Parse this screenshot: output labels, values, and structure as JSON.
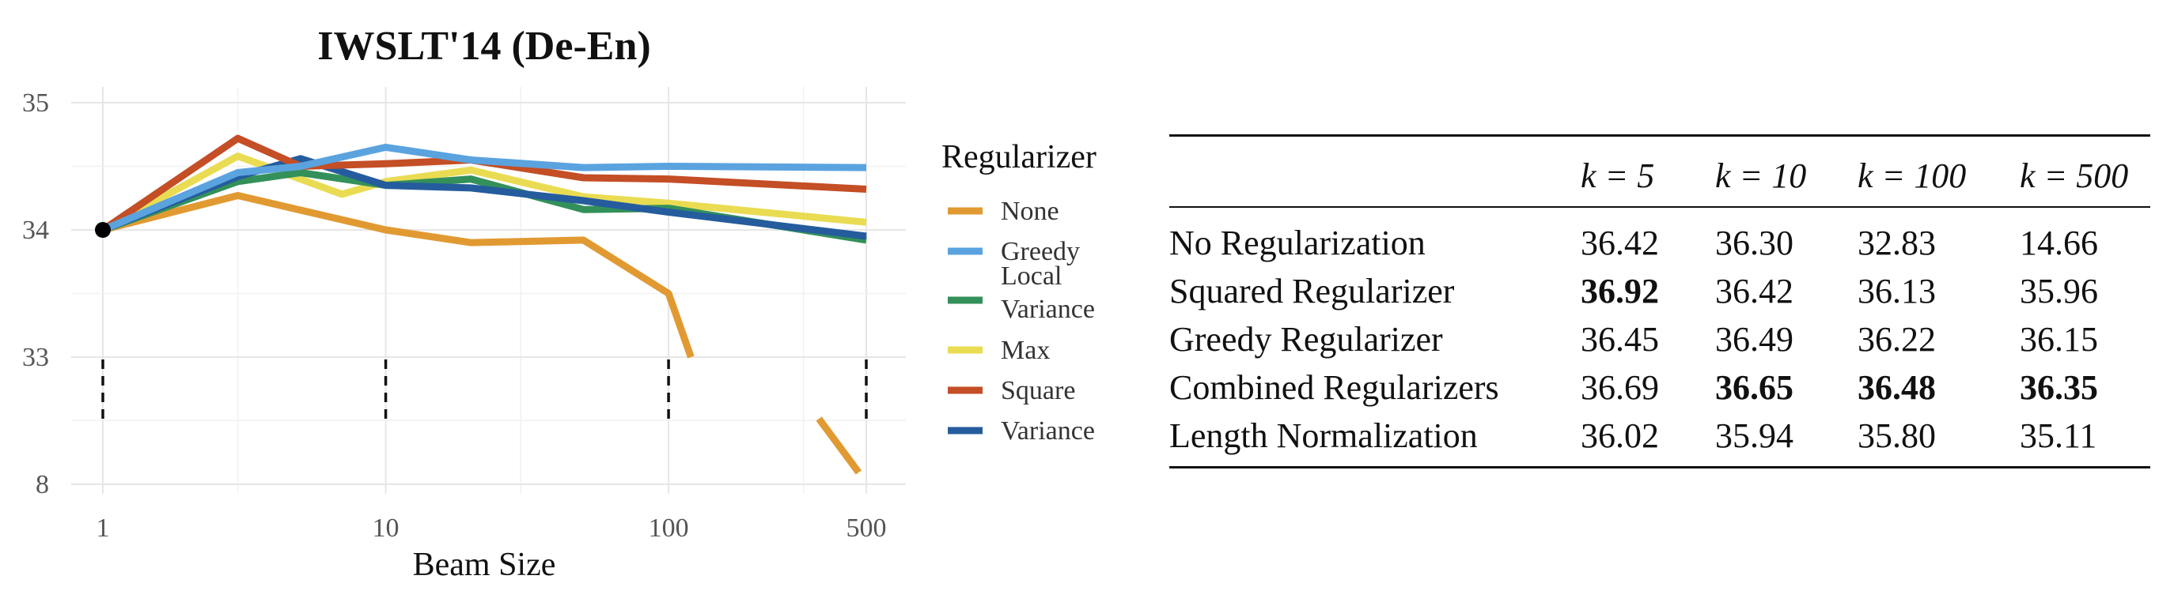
{
  "chart_data": {
    "type": "line",
    "title": "IWSLT'14 (De-En)",
    "xlabel": "Beam Size",
    "ylabel": "",
    "x_scale": "log",
    "x_ticks": [
      1,
      10,
      100,
      500
    ],
    "x_tick_labels": [
      "1",
      "10",
      "100",
      "500"
    ],
    "y_axis_broken": true,
    "y_ticks_upper": [
      33,
      34,
      35
    ],
    "y_tick_labels_upper": [
      "33",
      "34",
      "35"
    ],
    "y_tick_lower_label": "8",
    "legend_title": "Regularizer",
    "legend_position": "right",
    "grid": true,
    "start_point": {
      "x": 1,
      "y": 34.0
    },
    "series": [
      {
        "name": "None",
        "color": "#E19A32",
        "x": [
          1,
          3,
          10,
          20,
          50,
          100,
          120
        ],
        "y": [
          34.0,
          34.27,
          34.0,
          33.9,
          33.92,
          33.5,
          33.0
        ],
        "tail_x": [
          340,
          470
        ],
        "tail": "drops below break toward 8"
      },
      {
        "name": "Greedy",
        "color": "#5AA3DF",
        "x": [
          1,
          3,
          5,
          10,
          20,
          50,
          100,
          500
        ],
        "y": [
          34.0,
          34.45,
          34.5,
          34.65,
          34.55,
          34.49,
          34.5,
          34.49
        ]
      },
      {
        "name": "Local Variance",
        "color": "#33905A",
        "x": [
          1,
          3,
          5,
          10,
          20,
          50,
          100,
          500
        ],
        "y": [
          34.0,
          34.38,
          34.45,
          34.35,
          34.4,
          34.16,
          34.17,
          33.92
        ]
      },
      {
        "name": "Max",
        "color": "#EADC52",
        "x": [
          1,
          3,
          7,
          10,
          20,
          50,
          100,
          500
        ],
        "y": [
          34.0,
          34.58,
          34.28,
          34.38,
          34.47,
          34.26,
          34.21,
          34.06
        ]
      },
      {
        "name": "Square",
        "color": "#C44E25",
        "x": [
          1,
          3,
          5,
          10,
          20,
          50,
          100,
          500
        ],
        "y": [
          34.0,
          34.72,
          34.5,
          34.52,
          34.55,
          34.41,
          34.4,
          34.32
        ]
      },
      {
        "name": "Variance",
        "color": "#255C9D",
        "x": [
          1,
          3,
          5,
          10,
          20,
          50,
          100,
          500
        ],
        "y": [
          34.0,
          34.42,
          34.56,
          34.35,
          34.33,
          34.23,
          34.14,
          33.95
        ]
      }
    ]
  },
  "table": {
    "columns": [
      "",
      "k = 5",
      "k = 10",
      "k = 100",
      "k = 500"
    ],
    "rows": [
      {
        "label": "No Regularization",
        "values": [
          "36.42",
          "36.30",
          "32.83",
          "14.66"
        ],
        "bold": [
          false,
          false,
          false,
          false
        ]
      },
      {
        "label": "Squared Regularizer",
        "values": [
          "36.92",
          "36.42",
          "36.13",
          "35.96"
        ],
        "bold": [
          true,
          false,
          false,
          false
        ]
      },
      {
        "label": "Greedy Regularizer",
        "values": [
          "36.45",
          "36.49",
          "36.22",
          "36.15"
        ],
        "bold": [
          false,
          false,
          false,
          false
        ]
      },
      {
        "label": "Combined Regularizers",
        "values": [
          "36.69",
          "36.65",
          "36.48",
          "36.35"
        ],
        "bold": [
          false,
          true,
          true,
          true
        ]
      },
      {
        "label": "Length Normalization",
        "values": [
          "36.02",
          "35.94",
          "35.80",
          "35.11"
        ],
        "bold": [
          false,
          false,
          false,
          false
        ]
      }
    ]
  }
}
